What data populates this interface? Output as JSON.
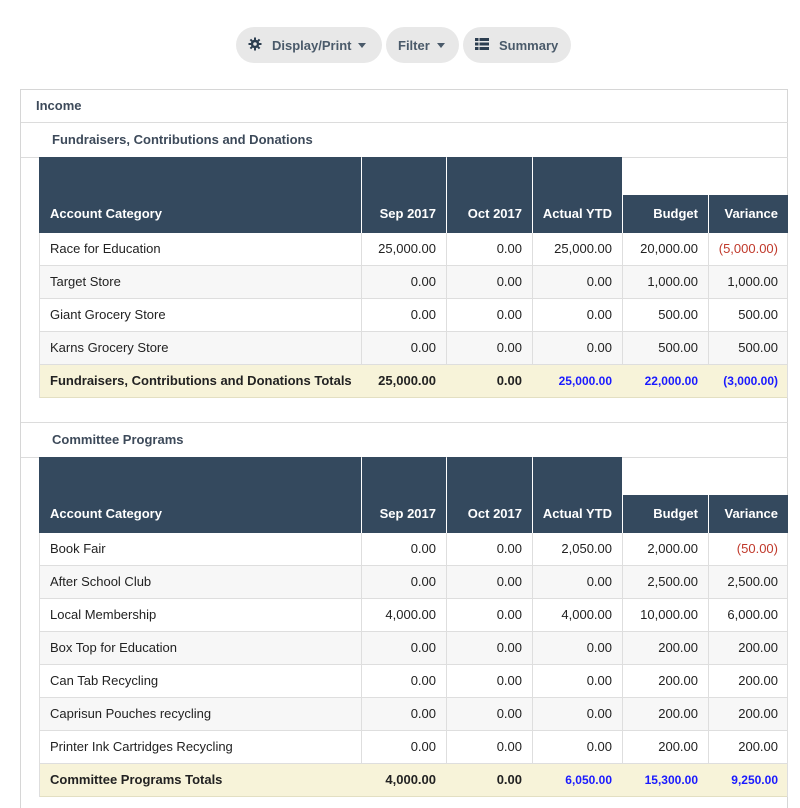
{
  "toolbar": {
    "display_print": "Display/Print",
    "filter": "Filter",
    "summary": "Summary"
  },
  "report": {
    "section_title": "Income",
    "columns": [
      "Account Category",
      "Sep 2017",
      "Oct 2017",
      "Actual YTD",
      "Budget",
      "Variance"
    ],
    "groups": [
      {
        "title": "Fundraisers, Contributions and Donations",
        "rows": [
          {
            "category": "Race for Education",
            "sep": "25,000.00",
            "oct": "0.00",
            "ytd": "25,000.00",
            "budget": "20,000.00",
            "variance": "(5,000.00)",
            "negative": true
          },
          {
            "category": "Target Store",
            "sep": "0.00",
            "oct": "0.00",
            "ytd": "0.00",
            "budget": "1,000.00",
            "variance": "1,000.00",
            "negative": false
          },
          {
            "category": "Giant Grocery Store",
            "sep": "0.00",
            "oct": "0.00",
            "ytd": "0.00",
            "budget": "500.00",
            "variance": "500.00",
            "negative": false
          },
          {
            "category": "Karns Grocery Store",
            "sep": "0.00",
            "oct": "0.00",
            "ytd": "0.00",
            "budget": "500.00",
            "variance": "500.00",
            "negative": false
          }
        ],
        "totals": {
          "label": "Fundraisers, Contributions and Donations Totals",
          "sep": "25,000.00",
          "oct": "0.00",
          "ytd": "25,000.00",
          "budget": "22,000.00",
          "variance": "(3,000.00)"
        }
      },
      {
        "title": "Committee Programs",
        "rows": [
          {
            "category": "Book Fair",
            "sep": "0.00",
            "oct": "0.00",
            "ytd": "2,050.00",
            "budget": "2,000.00",
            "variance": "(50.00)",
            "negative": true
          },
          {
            "category": "After School Club",
            "sep": "0.00",
            "oct": "0.00",
            "ytd": "0.00",
            "budget": "2,500.00",
            "variance": "2,500.00",
            "negative": false
          },
          {
            "category": "Local Membership",
            "sep": "4,000.00",
            "oct": "0.00",
            "ytd": "4,000.00",
            "budget": "10,000.00",
            "variance": "6,000.00",
            "negative": false
          },
          {
            "category": "Box Top for Education",
            "sep": "0.00",
            "oct": "0.00",
            "ytd": "0.00",
            "budget": "200.00",
            "variance": "200.00",
            "negative": false
          },
          {
            "category": "Can Tab Recycling",
            "sep": "0.00",
            "oct": "0.00",
            "ytd": "0.00",
            "budget": "200.00",
            "variance": "200.00",
            "negative": false
          },
          {
            "category": "Caprisun Pouches recycling",
            "sep": "0.00",
            "oct": "0.00",
            "ytd": "0.00",
            "budget": "200.00",
            "variance": "200.00",
            "negative": false
          },
          {
            "category": "Printer Ink Cartridges Recycling",
            "sep": "0.00",
            "oct": "0.00",
            "ytd": "0.00",
            "budget": "200.00",
            "variance": "200.00",
            "negative": false
          }
        ],
        "totals": {
          "label": "Committee Programs Totals",
          "sep": "4,000.00",
          "oct": "0.00",
          "ytd": "6,050.00",
          "budget": "15,300.00",
          "variance": "9,250.00"
        }
      }
    ]
  },
  "colors": {
    "header_bg": "#34495e",
    "totals_bg": "#f7f3d9",
    "negative": "#c0392b",
    "total_blue": "#1a1aff"
  },
  "icons": {
    "display_print": "gear-icon",
    "summary": "table-icon",
    "dropdown": "caret-down-icon"
  }
}
